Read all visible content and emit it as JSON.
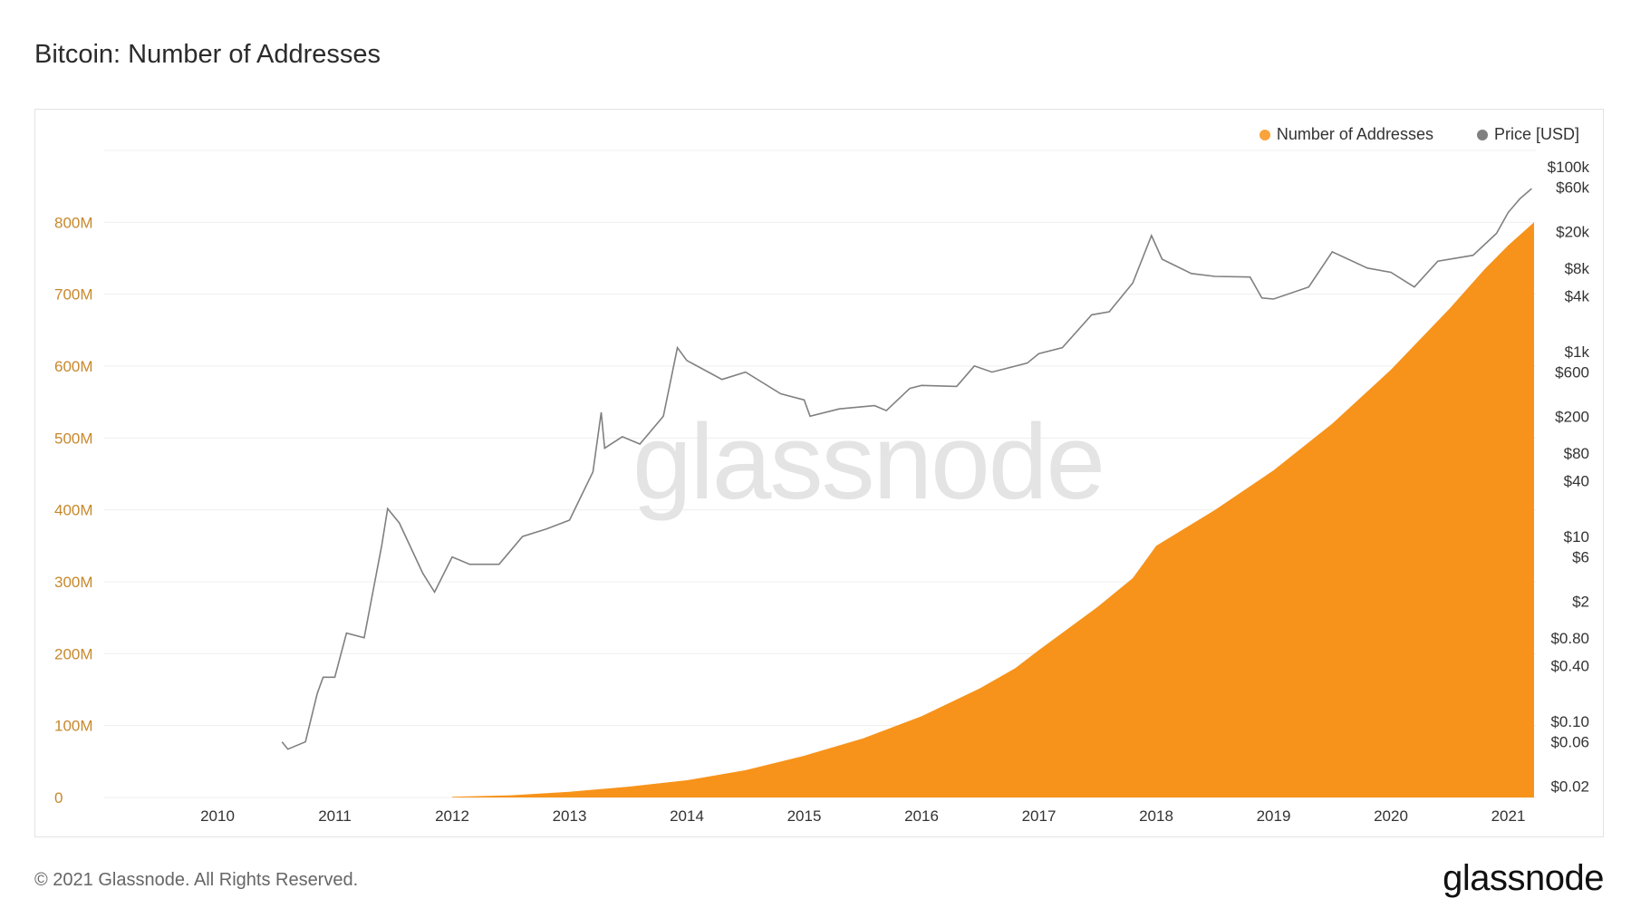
{
  "title": "Bitcoin: Number of Addresses",
  "legend": {
    "addresses_label": "Number of Addresses",
    "price_label": "Price [USD]"
  },
  "watermark": "glassnode",
  "footer": {
    "copyright": "© 2021 Glassnode. All Rights Reserved.",
    "logo": "glassnode"
  },
  "colors": {
    "addresses": "#f7931a",
    "addresses_legend": "#f9a33a",
    "price": "#808080",
    "left_axis": "#c8882c",
    "grid": "#efefef"
  },
  "chart_data": {
    "type": "area",
    "x_ticks": [
      "2010",
      "2011",
      "2012",
      "2013",
      "2014",
      "2015",
      "2016",
      "2017",
      "2018",
      "2019",
      "2020",
      "2021"
    ],
    "y_left": {
      "ticks": [
        0,
        100,
        200,
        300,
        400,
        500,
        600,
        700,
        800
      ],
      "tick_labels": [
        "0",
        "100M",
        "200M",
        "300M",
        "400M",
        "500M",
        "600M",
        "700M",
        "800M"
      ],
      "range": [
        0,
        900
      ]
    },
    "y_right": {
      "scale": "log",
      "tick_labels": [
        "$100k",
        "$60k",
        "$20k",
        "$8k",
        "$4k",
        "$1k",
        "$600",
        "$200",
        "$80",
        "$40",
        "$10",
        "$6",
        "$2",
        "$0.80",
        "$0.40",
        "$0.10",
        "$0.06",
        "$0.02"
      ],
      "tick_values": [
        100000,
        60000,
        20000,
        8000,
        4000,
        1000,
        600,
        200,
        80,
        40,
        10,
        6,
        2,
        0.8,
        0.4,
        0.1,
        0.06,
        0.02
      ],
      "range": [
        0.015,
        150000
      ]
    },
    "series": [
      {
        "name": "Number of Addresses",
        "axis": "left",
        "unit": "millions",
        "points": [
          [
            2012.0,
            1
          ],
          [
            2012.5,
            3
          ],
          [
            2013.0,
            8
          ],
          [
            2013.5,
            15
          ],
          [
            2014.0,
            24
          ],
          [
            2014.5,
            38
          ],
          [
            2015.0,
            58
          ],
          [
            2015.5,
            82
          ],
          [
            2016.0,
            113
          ],
          [
            2016.5,
            152
          ],
          [
            2016.8,
            180
          ],
          [
            2017.0,
            205
          ],
          [
            2017.5,
            265
          ],
          [
            2017.8,
            305
          ],
          [
            2018.0,
            350
          ],
          [
            2018.2,
            370
          ],
          [
            2018.5,
            400
          ],
          [
            2019.0,
            455
          ],
          [
            2019.5,
            520
          ],
          [
            2020.0,
            595
          ],
          [
            2020.5,
            680
          ],
          [
            2020.8,
            735
          ],
          [
            2021.0,
            768
          ],
          [
            2021.22,
            800
          ]
        ]
      },
      {
        "name": "Price [USD]",
        "axis": "right",
        "points": [
          [
            2010.55,
            0.06
          ],
          [
            2010.6,
            0.05
          ],
          [
            2010.75,
            0.06
          ],
          [
            2010.85,
            0.2
          ],
          [
            2010.9,
            0.3
          ],
          [
            2011.0,
            0.3
          ],
          [
            2011.1,
            0.9
          ],
          [
            2011.25,
            0.8
          ],
          [
            2011.4,
            8
          ],
          [
            2011.45,
            20
          ],
          [
            2011.55,
            14
          ],
          [
            2011.75,
            4
          ],
          [
            2011.85,
            2.5
          ],
          [
            2012.0,
            6
          ],
          [
            2012.15,
            5
          ],
          [
            2012.4,
            5
          ],
          [
            2012.6,
            10
          ],
          [
            2012.8,
            12
          ],
          [
            2013.0,
            15
          ],
          [
            2013.2,
            50
          ],
          [
            2013.27,
            220
          ],
          [
            2013.3,
            90
          ],
          [
            2013.45,
            120
          ],
          [
            2013.6,
            100
          ],
          [
            2013.8,
            200
          ],
          [
            2013.92,
            1100
          ],
          [
            2014.0,
            800
          ],
          [
            2014.3,
            500
          ],
          [
            2014.5,
            600
          ],
          [
            2014.8,
            350
          ],
          [
            2015.0,
            300
          ],
          [
            2015.05,
            200
          ],
          [
            2015.3,
            240
          ],
          [
            2015.6,
            260
          ],
          [
            2015.7,
            230
          ],
          [
            2015.9,
            400
          ],
          [
            2016.0,
            430
          ],
          [
            2016.3,
            420
          ],
          [
            2016.45,
            700
          ],
          [
            2016.6,
            600
          ],
          [
            2016.9,
            750
          ],
          [
            2017.0,
            950
          ],
          [
            2017.2,
            1100
          ],
          [
            2017.45,
            2500
          ],
          [
            2017.6,
            2700
          ],
          [
            2017.8,
            5500
          ],
          [
            2017.96,
            18000
          ],
          [
            2018.05,
            10000
          ],
          [
            2018.3,
            7000
          ],
          [
            2018.5,
            6500
          ],
          [
            2018.8,
            6400
          ],
          [
            2018.9,
            3800
          ],
          [
            2019.0,
            3700
          ],
          [
            2019.3,
            5000
          ],
          [
            2019.5,
            12000
          ],
          [
            2019.8,
            8000
          ],
          [
            2020.0,
            7200
          ],
          [
            2020.2,
            5000
          ],
          [
            2020.4,
            9500
          ],
          [
            2020.7,
            11000
          ],
          [
            2020.9,
            19000
          ],
          [
            2021.0,
            32000
          ],
          [
            2021.1,
            45000
          ],
          [
            2021.2,
            58000
          ]
        ]
      }
    ],
    "grid": true,
    "legend_position": "top-right"
  }
}
